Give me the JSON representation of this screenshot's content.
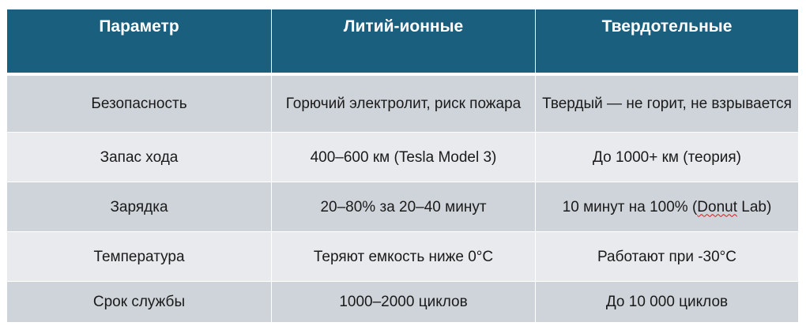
{
  "header": {
    "param": "Параметр",
    "liion": "Литий-ионные",
    "solid": "Твердотельные"
  },
  "rows": [
    {
      "param": "Безопасность",
      "liion": "Горючий электролит, риск пожара",
      "solid": "Твердый — не горит, не взрывается"
    },
    {
      "param": "Запас хода",
      "liion": "400–600 км (Tesla Model 3)",
      "solid": "До 1000+ км (теория)"
    },
    {
      "param": "Зарядка",
      "liion": "20–80% за 20–40 минут",
      "solid_before": "10 минут на 100% (",
      "solid_flagged": "Donut",
      "solid_after": " Lab)"
    },
    {
      "param": "Температура",
      "liion": "Теряют емкость ниже 0°С",
      "solid": "Работают при -30°С"
    },
    {
      "param": "Срок службы",
      "liion": "1000–2000 циклов",
      "solid": "До 10 000 циклов"
    }
  ],
  "colors": {
    "header_bg": "#1b5f7f",
    "row_dark": "#cfd4da",
    "row_light": "#e8eaed"
  }
}
